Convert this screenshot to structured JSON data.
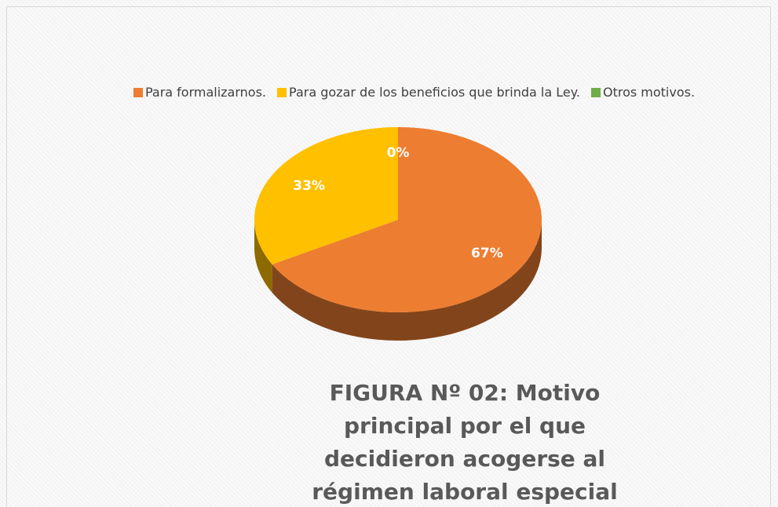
{
  "chart_data": {
    "type": "pie",
    "title": "FIGURA Nº 02: Motivo principal por el que decidieron acogerse al régimen laboral especial",
    "categories": [
      "Para formalizarnos.",
      "Para gozar de los beneficios que brinda la Ley.",
      "Otros motivos."
    ],
    "values": [
      67,
      33,
      0
    ],
    "value_labels": [
      "67%",
      "33%",
      "0%"
    ],
    "colors": [
      "#ED7D31",
      "#FFC000",
      "#70AD47"
    ],
    "legend": "top"
  }
}
